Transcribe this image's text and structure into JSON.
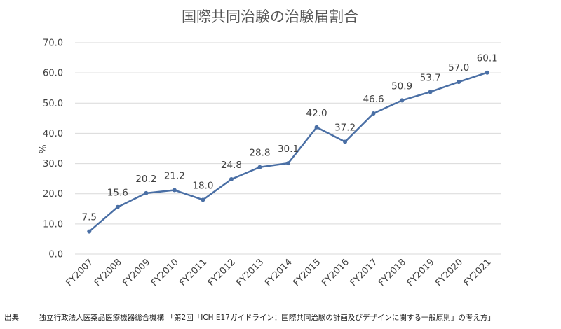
{
  "chart_data": {
    "type": "line",
    "title": "国際共同治験の治験届割合",
    "ylabel": "%",
    "xlabel": "",
    "ylim": [
      0,
      70
    ],
    "yticks": [
      "0.0",
      "10.0",
      "20.0",
      "30.0",
      "40.0",
      "50.0",
      "60.0",
      "70.0"
    ],
    "grid": true,
    "legend": "none",
    "categories": [
      "FY2007",
      "FY2008",
      "FY2009",
      "FY2010",
      "FY2011",
      "FY2012",
      "FY2013",
      "FY2014",
      "FY2015",
      "FY2016",
      "FY2017",
      "FY2018",
      "FY2019",
      "FY2020",
      "FY2021"
    ],
    "series": [
      {
        "values": [
          7.5,
          15.6,
          20.2,
          21.2,
          18.0,
          24.8,
          28.8,
          30.1,
          42.0,
          37.2,
          46.6,
          50.9,
          53.7,
          57.0,
          60.1
        ],
        "labels": [
          "7.5",
          "15.6",
          "20.2",
          "21.2",
          "18.0",
          "24.8",
          "28.8",
          "30.1",
          "42.0",
          "37.2",
          "46.6",
          "50.9",
          "53.7",
          "57.0",
          "60.1"
        ],
        "color": "#4a6fa5"
      }
    ]
  },
  "source": {
    "prefix": "出典",
    "text": "独立行政法人医薬品医療機器総合機構 「第2回「ICH E17ガイドライン：国際共同治験の計画及びデザインに関する一般原則」の考え方」"
  },
  "colors": {
    "grid": "#d9d9d9",
    "line": "#4a6fa5"
  }
}
